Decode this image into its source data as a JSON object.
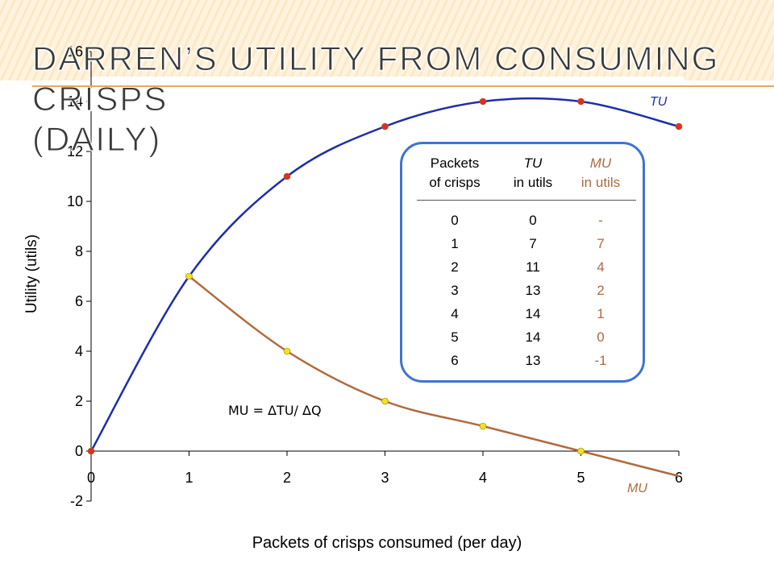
{
  "title_lines": [
    "Darren’s Utility from Consuming Crisps",
    "(Daily)"
  ],
  "chart_data": {
    "type": "line",
    "xlabel": "Packets of crisps consumed (per day)",
    "ylabel": "Utility (utils)",
    "xlim": [
      0,
      6
    ],
    "ylim": [
      -2,
      16
    ],
    "x_ticks": [
      "0",
      "1",
      "2",
      "3",
      "4",
      "5",
      "6"
    ],
    "y_ticks": [
      "-2",
      "0",
      "2",
      "4",
      "6",
      "8",
      "10",
      "12",
      "14",
      "16"
    ],
    "series": [
      {
        "name": "TU",
        "color": "#1f2ea8",
        "marker_color": "#e8282a",
        "points": [
          [
            0,
            0
          ],
          [
            2,
            11
          ],
          [
            3,
            13
          ],
          [
            4,
            14
          ],
          [
            5,
            14
          ],
          [
            6,
            13
          ]
        ],
        "curve": [
          [
            0,
            0
          ],
          [
            1,
            7
          ],
          [
            2,
            11
          ],
          [
            3,
            13
          ],
          [
            4,
            14
          ],
          [
            5,
            14
          ],
          [
            6,
            13
          ]
        ]
      },
      {
        "name": "MU",
        "color": "#b06a40",
        "marker_color": "#f2e21c",
        "points": [
          [
            1,
            7
          ],
          [
            2,
            4
          ],
          [
            3,
            2
          ],
          [
            4,
            1
          ],
          [
            5,
            0
          ]
        ],
        "curve": [
          [
            1,
            7
          ],
          [
            2,
            4
          ],
          [
            3,
            2
          ],
          [
            4,
            1
          ],
          [
            5,
            0
          ],
          [
            6,
            -1
          ]
        ]
      }
    ],
    "annotation": "MU = ΔTU/ ΔQ"
  },
  "table": {
    "headers": [
      {
        "line1": "Packets",
        "line2": "of crisps"
      },
      {
        "line1": "TU",
        "line2": "in utils"
      },
      {
        "line1": "MU",
        "line2": "in utils"
      }
    ],
    "packets": [
      "0",
      "1",
      "2",
      "3",
      "4",
      "5",
      "6"
    ],
    "tu": [
      "0",
      "7",
      "11",
      "13",
      "14",
      "14",
      "13"
    ],
    "mu": [
      "-",
      "7",
      "4",
      "2",
      "1",
      "0",
      "-1"
    ]
  },
  "colors": {
    "tu_line": "#1f2ea8",
    "mu_line": "#b06a40",
    "mu_text": "#b06a40",
    "box_border": "#3f73d1",
    "title_rule": "#e8a95b"
  }
}
